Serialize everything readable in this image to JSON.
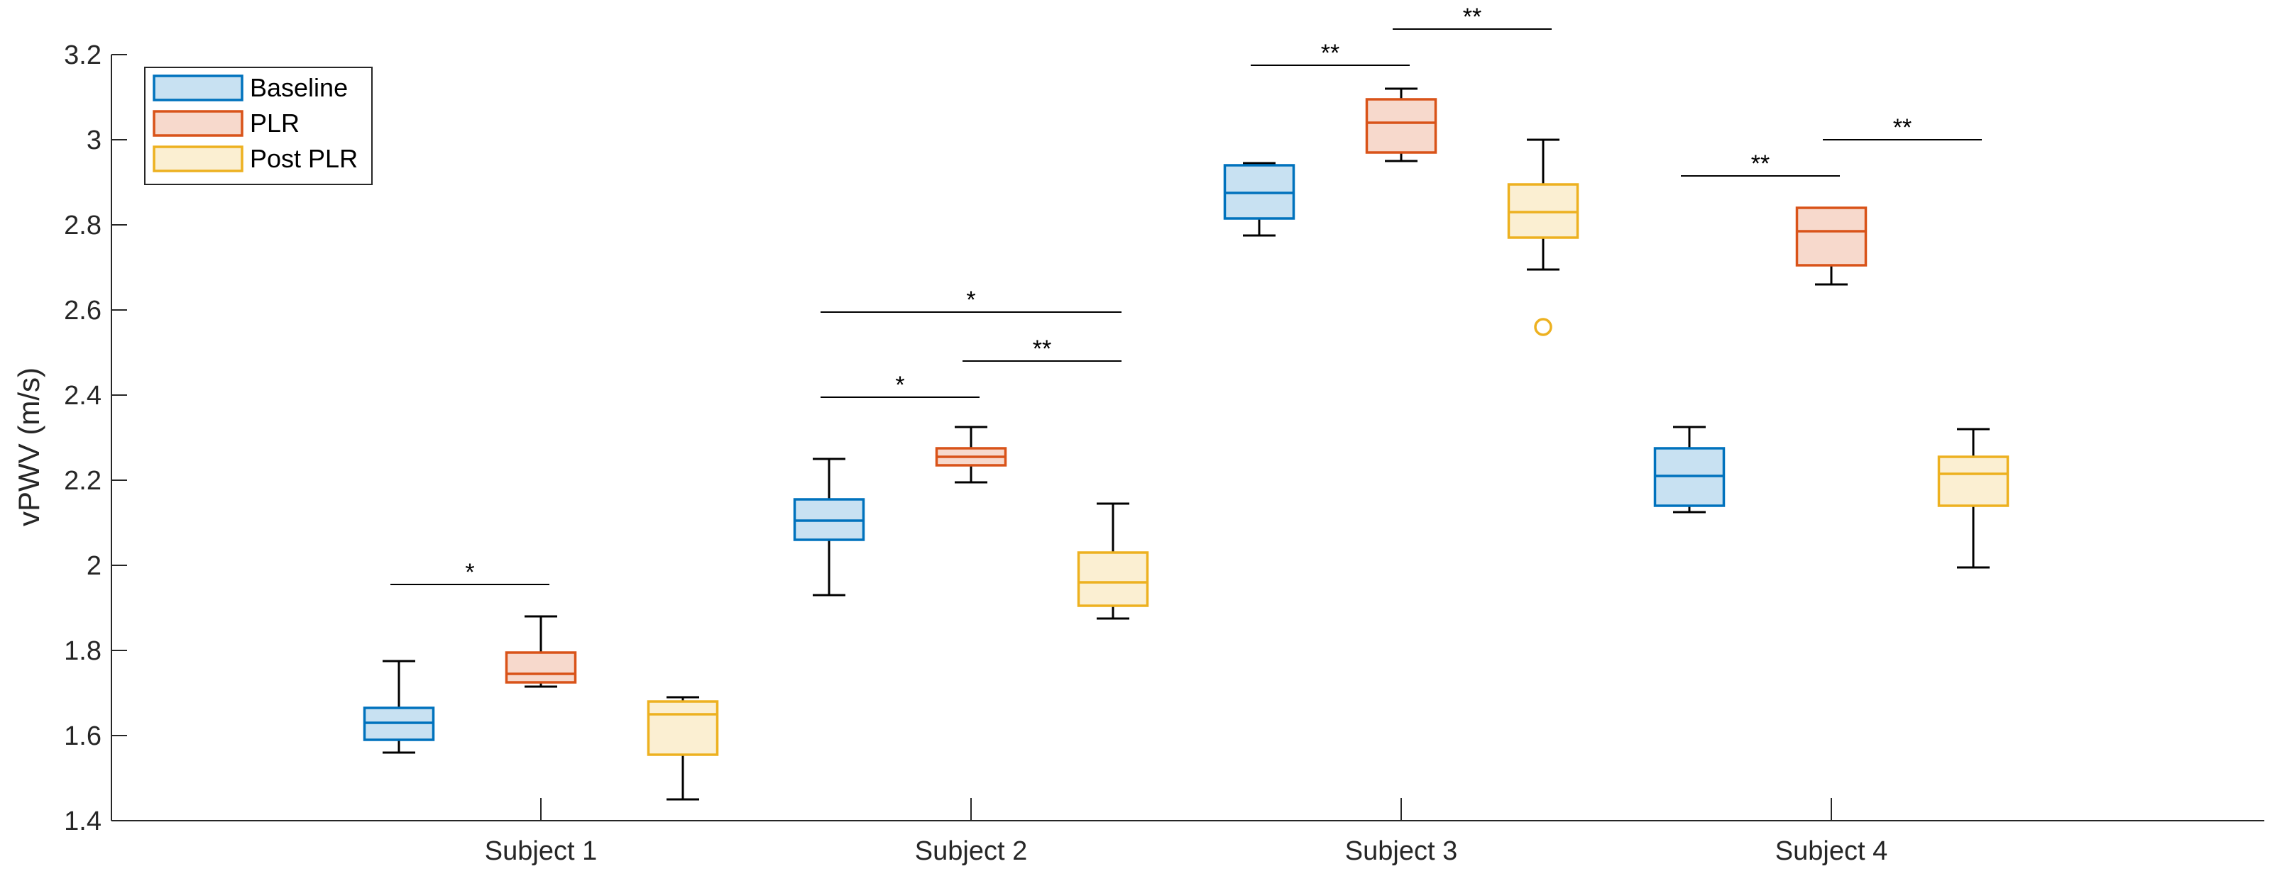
{
  "chart_data": {
    "type": "box",
    "title": "",
    "xlabel": "",
    "ylabel": "vPWV (m/s)",
    "ylim": [
      1.4,
      3.2
    ],
    "yticks": [
      1.4,
      1.6,
      1.8,
      2.0,
      2.2,
      2.4,
      2.6,
      2.8,
      3.0,
      3.2
    ],
    "ytick_labels": [
      "1.4",
      "1.6",
      "1.8",
      "2",
      "2.2",
      "2.4",
      "2.6",
      "2.8",
      "3",
      "3.2"
    ],
    "categories": [
      "Subject 1",
      "Subject 2",
      "Subject 3",
      "Subject 4"
    ],
    "legend_position": "top-left",
    "series": [
      {
        "name": "Baseline",
        "color": "#0072BD",
        "fill": "#C8E1F2",
        "boxes": [
          {
            "whisker_low": 1.56,
            "q1": 1.59,
            "median": 1.63,
            "q3": 1.665,
            "whisker_high": 1.775,
            "outliers": []
          },
          {
            "whisker_low": 1.93,
            "q1": 2.06,
            "median": 2.105,
            "q3": 2.155,
            "whisker_high": 2.25,
            "outliers": []
          },
          {
            "whisker_low": 2.775,
            "q1": 2.815,
            "median": 2.875,
            "q3": 2.94,
            "whisker_high": 2.945,
            "outliers": []
          },
          {
            "whisker_low": 2.125,
            "q1": 2.14,
            "median": 2.21,
            "q3": 2.275,
            "whisker_high": 2.325,
            "outliers": []
          }
        ]
      },
      {
        "name": "PLR",
        "color": "#D95319",
        "fill": "#F7D9CC",
        "boxes": [
          {
            "whisker_low": 1.715,
            "q1": 1.725,
            "median": 1.745,
            "q3": 1.795,
            "whisker_high": 1.88,
            "outliers": []
          },
          {
            "whisker_low": 2.195,
            "q1": 2.235,
            "median": 2.255,
            "q3": 2.275,
            "whisker_high": 2.325,
            "outliers": []
          },
          {
            "whisker_low": 2.95,
            "q1": 2.97,
            "median": 3.04,
            "q3": 3.095,
            "whisker_high": 3.12,
            "outliers": []
          },
          {
            "whisker_low": 2.66,
            "q1": 2.705,
            "median": 2.785,
            "q3": 2.84,
            "whisker_high": 2.84,
            "outliers": []
          }
        ]
      },
      {
        "name": "Post PLR",
        "color": "#EDB120",
        "fill": "#FBEFD2",
        "boxes": [
          {
            "whisker_low": 1.45,
            "q1": 1.555,
            "median": 1.65,
            "q3": 1.68,
            "whisker_high": 1.69,
            "outliers": []
          },
          {
            "whisker_low": 1.875,
            "q1": 1.905,
            "median": 1.96,
            "q3": 2.03,
            "whisker_high": 2.145,
            "outliers": []
          },
          {
            "whisker_low": 2.695,
            "q1": 2.77,
            "median": 2.83,
            "q3": 2.895,
            "whisker_high": 3.0,
            "outliers": [
              2.56
            ]
          },
          {
            "whisker_low": 1.995,
            "q1": 2.14,
            "median": 2.215,
            "q3": 2.255,
            "whisker_high": 2.32,
            "outliers": []
          }
        ]
      }
    ],
    "significance": [
      {
        "subject": 0,
        "from": "Baseline",
        "to": "PLR",
        "y": 1.955,
        "label": "*"
      },
      {
        "subject": 1,
        "from": "Baseline",
        "to": "PLR",
        "y": 2.395,
        "label": "*"
      },
      {
        "subject": 1,
        "from": "PLR",
        "to": "Post PLR",
        "y": 2.48,
        "label": "**"
      },
      {
        "subject": 1,
        "from": "Baseline",
        "to": "Post PLR",
        "y": 2.595,
        "label": "*"
      },
      {
        "subject": 2,
        "from": "Baseline",
        "to": "PLR",
        "y": 3.175,
        "label": "**"
      },
      {
        "subject": 2,
        "from": "PLR",
        "to": "Post PLR",
        "y": 3.26,
        "label": "**"
      },
      {
        "subject": 3,
        "from": "Baseline",
        "to": "PLR",
        "y": 2.915,
        "label": "**"
      },
      {
        "subject": 3,
        "from": "PLR",
        "to": "Post PLR",
        "y": 3.0,
        "label": "**"
      }
    ]
  }
}
